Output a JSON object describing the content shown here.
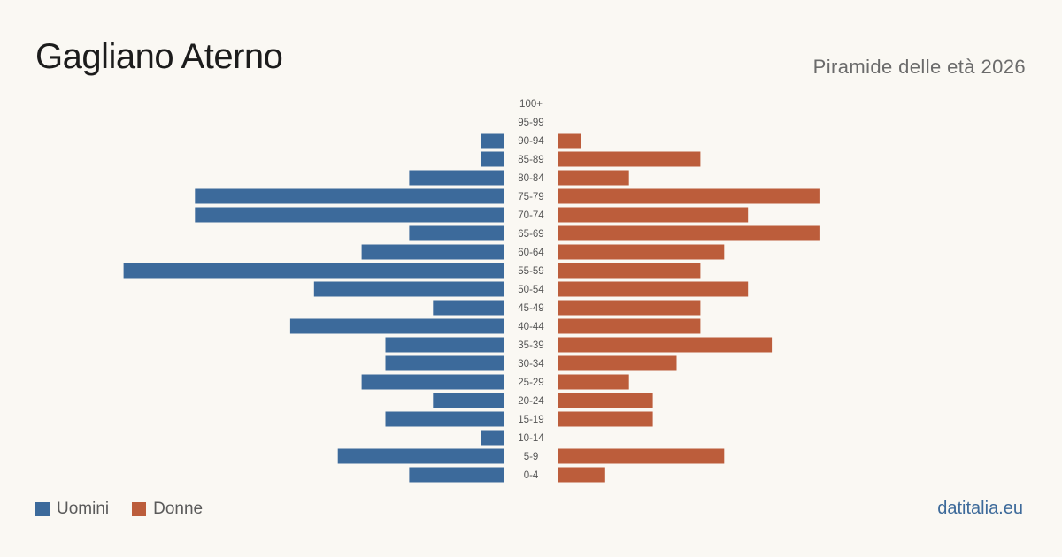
{
  "title": "Gagliano Aterno",
  "subtitle": "Piramide delle età 2026",
  "site": "datitalia.eu",
  "colors": {
    "men": "#3c6a9b",
    "women": "#bc5d3b",
    "label": "#555555"
  },
  "chart_data": {
    "type": "bar",
    "orientation": "horizontal-pyramid",
    "categories": [
      "100+",
      "95-99",
      "90-94",
      "85-89",
      "80-84",
      "75-79",
      "70-74",
      "65-69",
      "60-64",
      "55-59",
      "50-54",
      "45-49",
      "40-44",
      "35-39",
      "30-34",
      "25-29",
      "20-24",
      "15-19",
      "10-14",
      "5-9",
      "0-4"
    ],
    "series": [
      {
        "name": "Uomini",
        "values": [
          0,
          0,
          1,
          1,
          4,
          13,
          13,
          4,
          6,
          16,
          8,
          3,
          9,
          5,
          5,
          6,
          3,
          5,
          1,
          7,
          4
        ]
      },
      {
        "name": "Donne",
        "values": [
          0,
          0,
          1,
          6,
          3,
          11,
          8,
          11,
          7,
          6,
          8,
          6,
          6,
          9,
          5,
          3,
          4,
          4,
          0,
          7,
          2
        ]
      }
    ],
    "legend_position": "bottom-left",
    "grid": false
  }
}
